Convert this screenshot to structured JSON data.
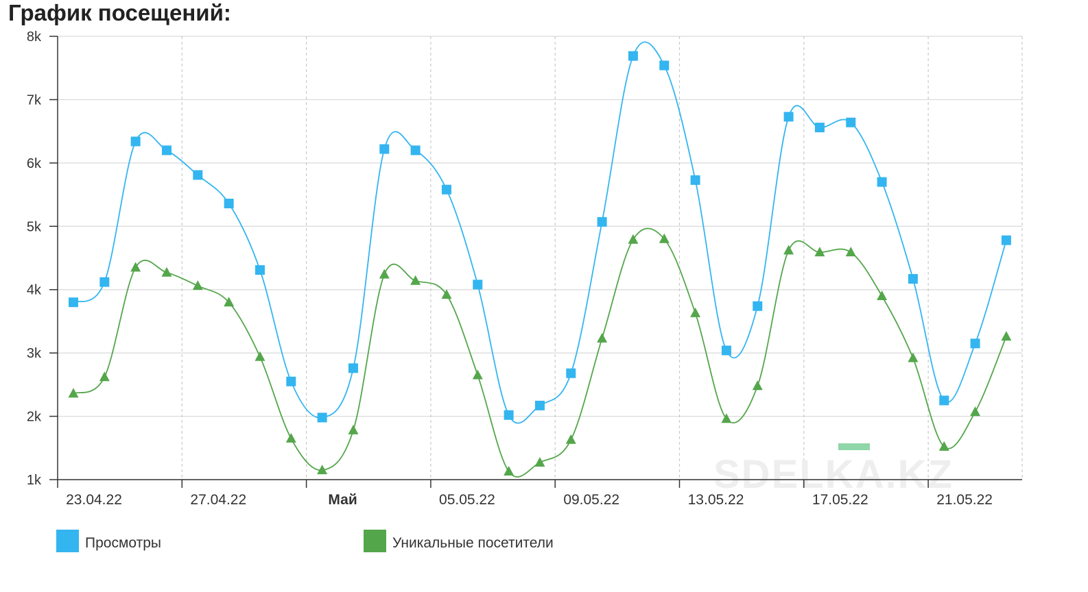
{
  "page": {
    "title": "График посещений:"
  },
  "watermark": "SDELKA.KZ",
  "chart_data": {
    "type": "line",
    "title": "График посещений:",
    "xlabel": "",
    "ylabel": "",
    "ylim": [
      1000,
      8000
    ],
    "y_ticks": [
      {
        "value": 1000,
        "label": "1k"
      },
      {
        "value": 2000,
        "label": "2k"
      },
      {
        "value": 3000,
        "label": "3k"
      },
      {
        "value": 4000,
        "label": "4k"
      },
      {
        "value": 5000,
        "label": "5k"
      },
      {
        "value": 6000,
        "label": "6k"
      },
      {
        "value": 7000,
        "label": "7k"
      },
      {
        "value": 8000,
        "label": "8k"
      }
    ],
    "x": [
      "23.04.22",
      "24.04.22",
      "25.04.22",
      "26.04.22",
      "27.04.22",
      "28.04.22",
      "29.04.22",
      "30.04.22",
      "01.05.22",
      "02.05.22",
      "03.05.22",
      "04.05.22",
      "05.05.22",
      "06.05.22",
      "07.05.22",
      "08.05.22",
      "09.05.22",
      "10.05.22",
      "11.05.22",
      "12.05.22",
      "13.05.22",
      "14.05.22",
      "15.05.22",
      "16.05.22",
      "17.05.22",
      "18.05.22",
      "19.05.22",
      "20.05.22",
      "21.05.22",
      "22.05.22",
      "23.05.22"
    ],
    "x_ticks": [
      {
        "index": 0,
        "label": "23.04.22",
        "bold": false
      },
      {
        "index": 4,
        "label": "27.04.22",
        "bold": false
      },
      {
        "index": 8,
        "label": "Май",
        "bold": true
      },
      {
        "index": 12,
        "label": "05.05.22",
        "bold": false
      },
      {
        "index": 16,
        "label": "09.05.22",
        "bold": false
      },
      {
        "index": 20,
        "label": "13.05.22",
        "bold": false
      },
      {
        "index": 24,
        "label": "17.05.22",
        "bold": false
      },
      {
        "index": 28,
        "label": "21.05.22",
        "bold": false
      }
    ],
    "grid": true,
    "legend_position": "bottom-left",
    "series": [
      {
        "name": "Просмотры",
        "color": "#33b5f0",
        "marker": "square",
        "values": [
          3800,
          4120,
          6340,
          6200,
          5810,
          5360,
          4310,
          2550,
          1980,
          2760,
          6220,
          6200,
          5580,
          4080,
          2020,
          2170,
          2680,
          5070,
          7690,
          7540,
          5730,
          3040,
          3740,
          6730,
          6560,
          6640,
          5700,
          4170,
          2250,
          3150,
          4780
        ]
      },
      {
        "name": "Уникальные посетители",
        "color": "#54a64b",
        "marker": "triangle",
        "values": [
          2360,
          2620,
          4350,
          4270,
          4060,
          3800,
          2940,
          1650,
          1150,
          1780,
          4240,
          4140,
          3920,
          2650,
          1130,
          1270,
          1630,
          3230,
          4790,
          4800,
          3630,
          1960,
          2480,
          4620,
          4590,
          4590,
          3900,
          2920,
          1520,
          2070,
          3260
        ]
      }
    ]
  },
  "decor": {
    "green_dash_color": "#8fd6a8"
  }
}
